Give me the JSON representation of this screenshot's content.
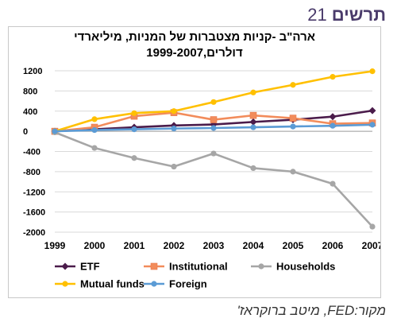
{
  "slide": {
    "title": "תרשים",
    "number": "21",
    "source": "מקור:FED, מיטב ברוקראז'"
  },
  "chart_data": {
    "type": "line",
    "title_line1": "ארה\"ב -קניות מצטברות של המניות, מיליארדי",
    "title_line2": "דולרים,1999-2007",
    "x": [
      "1999",
      "2000",
      "2001",
      "2002",
      "2003",
      "2004",
      "2005",
      "2006",
      "2007"
    ],
    "ylim": [
      -2000,
      1200
    ],
    "yticks": [
      1200,
      800,
      400,
      0,
      -400,
      -800,
      -1200,
      -1600,
      -2000
    ],
    "ytick_labels": [
      "1200",
      "800",
      "400",
      "0",
      "-400",
      "-800",
      "-1200",
      "-1600",
      "-2000"
    ],
    "grid": "horizontal",
    "legend_position": "bottom",
    "series": [
      {
        "name": "ETF",
        "color": "#4b1c4b",
        "marker": "diamond",
        "values": [
          0,
          40,
          80,
          115,
          135,
          185,
          230,
          290,
          410
        ]
      },
      {
        "name": "Institutional",
        "color": "#f28c5b",
        "marker": "square",
        "values": [
          0,
          80,
          300,
          370,
          230,
          315,
          260,
          150,
          165
        ]
      },
      {
        "name": "Households",
        "color": "#a6a6a6",
        "marker": "circle",
        "values": [
          -20,
          -330,
          -530,
          -700,
          -440,
          -730,
          -800,
          -1040,
          -1890
        ]
      },
      {
        "name": "Mutual funds",
        "color": "#ffc000",
        "marker": "circle",
        "values": [
          0,
          240,
          360,
          400,
          580,
          770,
          920,
          1080,
          1190
        ]
      },
      {
        "name": "Foreign",
        "color": "#5b9bd5",
        "marker": "circle",
        "values": [
          0,
          25,
          40,
          55,
          65,
          80,
          95,
          110,
          130
        ]
      }
    ]
  }
}
